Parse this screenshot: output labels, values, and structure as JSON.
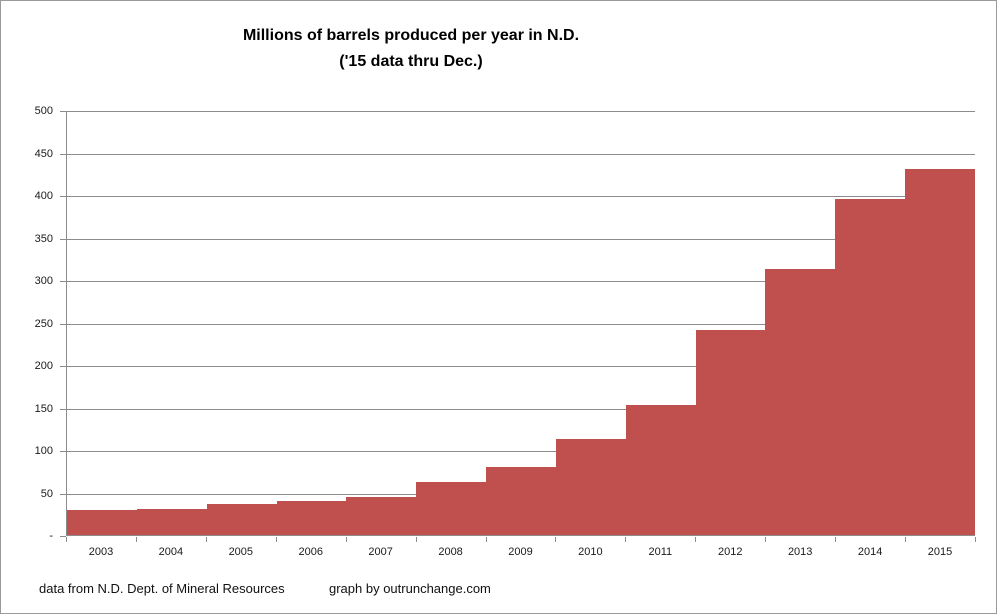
{
  "title": {
    "line1": "Millions of barrels produced per year in N.D.",
    "line2": "('15 data thru Dec.)"
  },
  "footer": {
    "source": "data from N.D. Dept. of Mineral Resources",
    "credit": "graph by outrunchange.com"
  },
  "colors": {
    "bar": "#c0504d",
    "gridline": "#8c8c8c",
    "axis": "#8c8c8c",
    "text": "#1a1a1a",
    "background": "#ffffff",
    "border": "#9a9a9a"
  },
  "chart_data": {
    "type": "bar",
    "title": "Millions of barrels produced per year in N.D. ('15 data thru Dec.)",
    "categories": [
      "2003",
      "2004",
      "2005",
      "2006",
      "2007",
      "2008",
      "2009",
      "2010",
      "2011",
      "2012",
      "2013",
      "2014",
      "2015"
    ],
    "values": [
      29,
      31,
      36,
      40,
      45,
      63,
      80,
      113,
      153,
      242,
      314,
      396,
      432
    ],
    "xlabel": "",
    "ylabel": "",
    "ylim": [
      0,
      500
    ],
    "y_tick_interval": 50,
    "y_tick_labels_bottom_up": [
      "-",
      "50",
      "100",
      "150",
      "200",
      "250",
      "300",
      "350",
      "400",
      "450",
      "500"
    ],
    "grid": true,
    "legend": "none",
    "gap_width_percent": 0,
    "bar_color": "#c0504d"
  }
}
